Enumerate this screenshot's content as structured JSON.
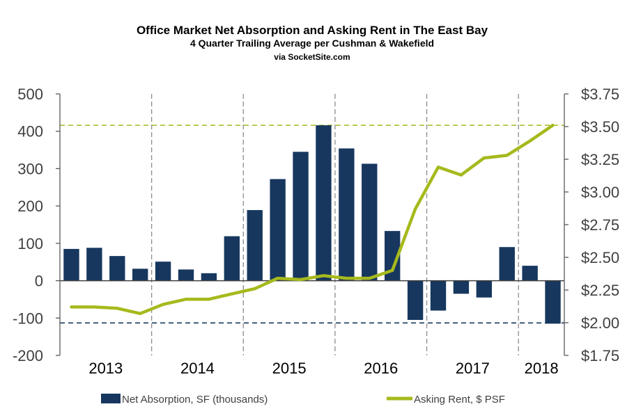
{
  "chart_data": {
    "type": "bar+line",
    "title": "Office Market Net Absorption and Asking Rent in The East Bay",
    "subtitle": "4 Quarter Trailing Average per Cushman & Wakefield",
    "source": "via SocketSite.com",
    "years": [
      "2013",
      "2014",
      "2015",
      "2016",
      "2017",
      "2018"
    ],
    "quarters": [
      "2013 Q1",
      "2013 Q2",
      "2013 Q3",
      "2013 Q4",
      "2014 Q1",
      "2014 Q2",
      "2014 Q3",
      "2014 Q4",
      "2015 Q1",
      "2015 Q2",
      "2015 Q3",
      "2015 Q4",
      "2016 Q1",
      "2016 Q2",
      "2016 Q3",
      "2016 Q4",
      "2017 Q1",
      "2017 Q2",
      "2017 Q3",
      "2017 Q4",
      "2018 Q1",
      "2018 Q2"
    ],
    "series": [
      {
        "name": "Net Absorption, SF (thousands)",
        "type": "bar",
        "axis": "left",
        "color": "#17375e",
        "values": [
          85,
          88,
          66,
          32,
          51,
          30,
          20,
          119,
          189,
          272,
          345,
          416,
          354,
          313,
          133,
          -105,
          -80,
          -35,
          -45,
          90,
          40,
          -115
        ]
      },
      {
        "name": "Asking Rent, $ PSF",
        "type": "line",
        "axis": "right",
        "color": "#a6b91c",
        "values": [
          2.12,
          2.12,
          2.11,
          2.07,
          2.14,
          2.18,
          2.18,
          2.22,
          2.26,
          2.34,
          2.33,
          2.36,
          2.34,
          2.34,
          2.4,
          2.87,
          3.19,
          3.13,
          3.26,
          3.28,
          3.39,
          3.51
        ]
      }
    ],
    "y_left": {
      "min": -200,
      "max": 500,
      "step": 100,
      "ticks": [
        "-200",
        "-100",
        "0",
        "100",
        "200",
        "300",
        "400",
        "500"
      ]
    },
    "y_right": {
      "min": 1.75,
      "max": 3.75,
      "step": 0.25,
      "ticks": [
        "$1.75",
        "$2.00",
        "$2.25",
        "$2.50",
        "$2.75",
        "$3.00",
        "$3.25",
        "$3.50",
        "$3.75"
      ]
    },
    "reference_lines": [
      {
        "axis": "right",
        "value": 3.51,
        "color": "#a6b91c",
        "style": "dashed"
      },
      {
        "axis": "left",
        "value": -113,
        "color": "#17375e",
        "style": "dashed"
      }
    ],
    "grid": false,
    "legend_position": "bottom"
  }
}
